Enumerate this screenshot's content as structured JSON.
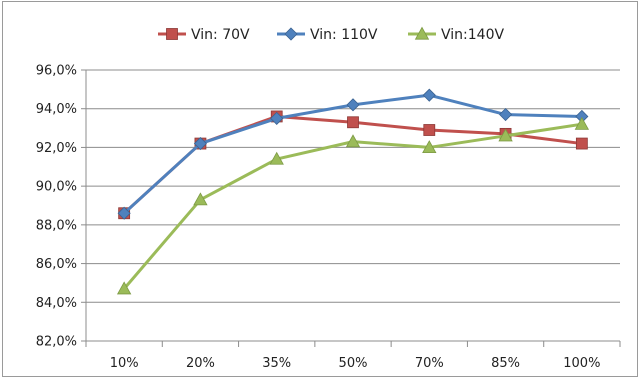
{
  "chart_data": {
    "type": "line",
    "categories": [
      "10%",
      "20%",
      "35%",
      "50%",
      "70%",
      "85%",
      "100%"
    ],
    "ylim": [
      82.0,
      96.0
    ],
    "ytick_values": [
      82.0,
      84.0,
      86.0,
      88.0,
      90.0,
      92.0,
      94.0,
      96.0
    ],
    "ytick_labels": [
      "82,0%",
      "84,0%",
      "86,0%",
      "88,0%",
      "90,0%",
      "92,0%",
      "94,0%",
      "96,0%"
    ],
    "grid": "horizontal",
    "legend_position": "top",
    "series": [
      {
        "name": "Vin: 70V",
        "color": "#c0504d",
        "marker": "square",
        "values": [
          88.6,
          92.2,
          93.6,
          93.3,
          92.9,
          92.7,
          92.2
        ]
      },
      {
        "name": "Vin: 110V",
        "color": "#4f81bd",
        "marker": "diamond",
        "values": [
          88.6,
          92.2,
          93.5,
          94.2,
          94.7,
          93.7,
          93.6
        ]
      },
      {
        "name": "Vin:140V",
        "color": "#9bbb59",
        "marker": "triangle",
        "values": [
          84.7,
          89.3,
          91.4,
          92.3,
          92.0,
          92.6,
          93.2
        ]
      }
    ]
  }
}
